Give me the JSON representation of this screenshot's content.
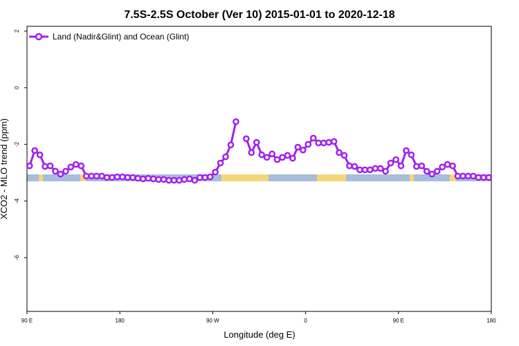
{
  "chart_data": {
    "type": "line",
    "title": "7.5S-2.5S October (Ver 10)   2015-01-01 to 2020-12-18",
    "x_label": "Longitude (deg E)",
    "y_label": "XCO2 - MLO trend (ppm)",
    "x": [
      92.5,
      97.5,
      102.5,
      107.5,
      112.5,
      117.5,
      122.5,
      127.5,
      132.5,
      137.5,
      142.5,
      147.5,
      152.5,
      157.5,
      162.5,
      167.5,
      172.5,
      177.5,
      182.5,
      187.5,
      192.5,
      197.5,
      202.5,
      207.5,
      212.5,
      217.5,
      222.5,
      227.5,
      232.5,
      237.5,
      242.5,
      247.5,
      252.5,
      257.5,
      262.5,
      267.5,
      272.5,
      277.5,
      282.5,
      287.5,
      292.5,
      297.5,
      302.5,
      307.5,
      312.5,
      317.5,
      322.5,
      327.5,
      332.5,
      337.5,
      342.5,
      347.5,
      352.5,
      357.5,
      362.5,
      367.5,
      372.5,
      377.5,
      382.5,
      387.5,
      392.5,
      397.5,
      402.5,
      407.5,
      412.5,
      417.5,
      422.5,
      427.5,
      432.5,
      437.5,
      442.5,
      447.5,
      452.5,
      457.5,
      462.5,
      467.5,
      472.5,
      477.5,
      482.5,
      487.5,
      492.5,
      497.5,
      502.5,
      507.5,
      512.5,
      517.5,
      522.5,
      527.5,
      532.5,
      537.5
    ],
    "series": [
      {
        "name": "Land (Nadir&Glint) and Ocean (Glint)",
        "color": "#a020f0",
        "values": [
          -2.76,
          -2.22,
          -2.37,
          -2.78,
          -2.76,
          -2.95,
          -3.05,
          -2.95,
          -2.8,
          -2.71,
          -2.76,
          -3.12,
          -3.12,
          -3.12,
          -3.12,
          -3.17,
          -3.17,
          -3.15,
          -3.15,
          -3.17,
          -3.17,
          -3.2,
          -3.22,
          -3.2,
          -3.22,
          -3.24,
          -3.24,
          -3.27,
          -3.27,
          -3.27,
          -3.24,
          -3.22,
          -3.27,
          -3.17,
          -3.17,
          -3.15,
          -2.98,
          -2.66,
          -2.44,
          -2.02,
          -1.2,
          null,
          -1.8,
          -2.29,
          -1.93,
          -2.37,
          -2.46,
          -2.34,
          -2.54,
          -2.46,
          -2.39,
          -2.49,
          -2.1,
          -2.2,
          -2.0,
          -1.78,
          -1.95,
          -1.95,
          -1.93,
          -1.9,
          -2.29,
          -2.39,
          -2.76,
          -2.78,
          -2.9,
          -2.9,
          -2.9,
          -2.85,
          -2.85,
          -2.95,
          -2.66,
          -2.54,
          -2.76,
          -2.22,
          -2.37,
          -2.78,
          -2.76,
          -2.95,
          -3.05,
          -2.95,
          -2.8,
          -2.71,
          -2.76,
          -3.12,
          -3.12,
          -3.12,
          -3.12,
          -3.17,
          -3.17,
          -3.17
        ]
      }
    ],
    "xlim": [
      90,
      540
    ],
    "xticks": [
      {
        "value": 90,
        "label": "90 E"
      },
      180,
      {
        "value": 270,
        "label": "90 W"
      },
      {
        "value": 360,
        "label": "0"
      },
      {
        "value": 450,
        "label": "90 E"
      },
      {
        "value": 540,
        "label": "180"
      }
    ],
    "ylim": [
      -7.9,
      2.17
    ],
    "yticks": [
      -6,
      -4,
      -2,
      0,
      2
    ],
    "legend": "top-left"
  }
}
